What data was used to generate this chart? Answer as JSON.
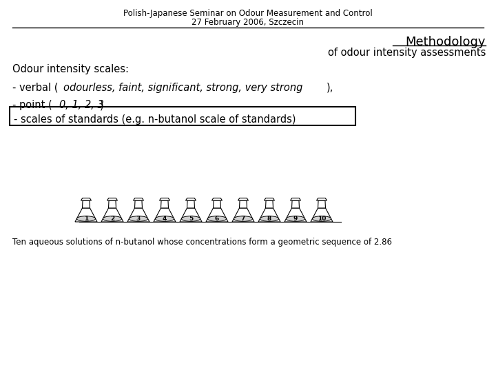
{
  "title_line1": "Polish-Japanese Seminar on Odour Measurement and Control",
  "title_line2": "27 February 2006, Szczecin",
  "methodology": "Methodology",
  "subtitle": "of odour intensity assessments",
  "intensity_label": "Odour intensity scales:",
  "line3": "- scales of standards (e.g. n-butanol scale of standards)",
  "caption": "Ten aqueous solutions of n-butanol whose concentrations form a geometric sequence of 2.86",
  "bg_color": "#ffffff",
  "text_color": "#000000",
  "num_flasks": 10,
  "title_fontsize": 8.5,
  "body_fontsize": 10.5,
  "methodology_fontsize": 13
}
